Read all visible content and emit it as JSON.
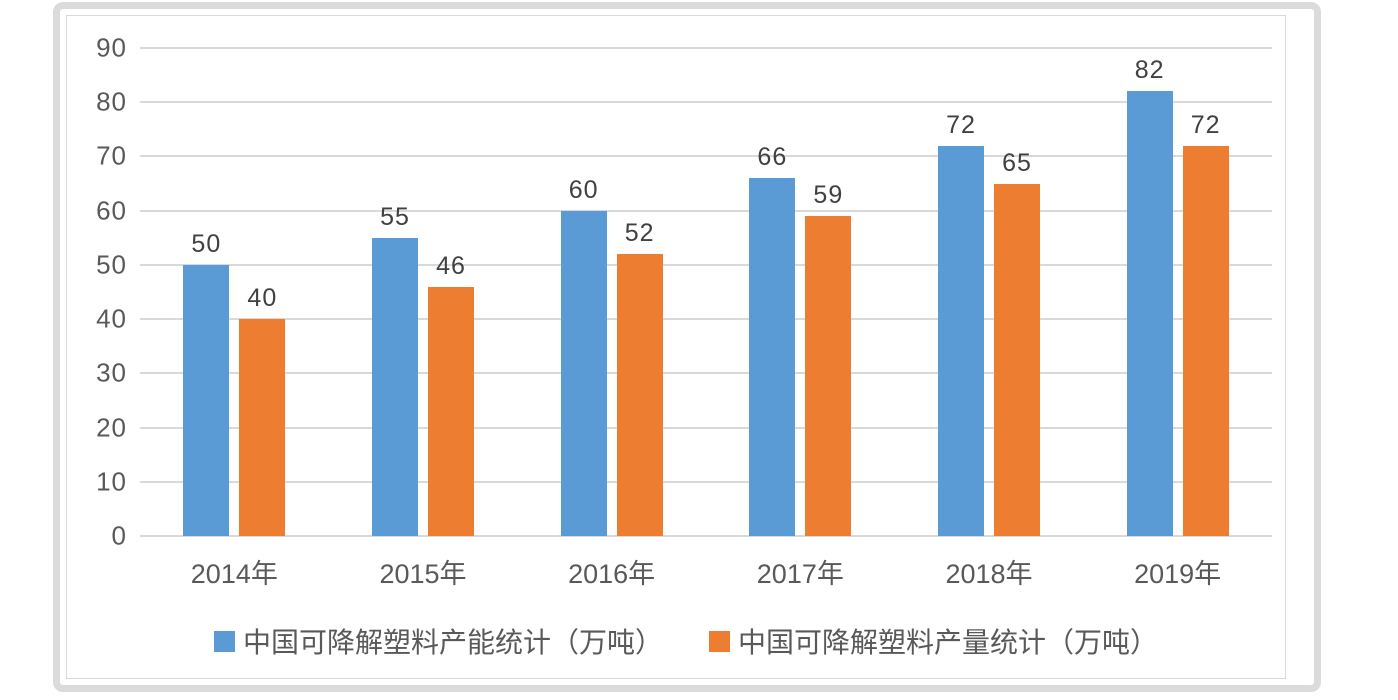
{
  "chart_data": {
    "type": "bar",
    "categories": [
      "2014年",
      "2015年",
      "2016年",
      "2017年",
      "2018年",
      "2019年"
    ],
    "series": [
      {
        "name": "中国可降解塑料产能统计（万吨）",
        "color": "#5B9BD5",
        "values": [
          50,
          55,
          60,
          66,
          72,
          82
        ]
      },
      {
        "name": "中国可降解塑料产量统计（万吨）",
        "color": "#ED7D31",
        "values": [
          40,
          46,
          52,
          59,
          65,
          72
        ]
      }
    ],
    "title": "",
    "xlabel": "",
    "ylabel": "",
    "ylim": [
      0,
      90
    ],
    "yticks": [
      0,
      10,
      20,
      30,
      40,
      50,
      60,
      70,
      80,
      90
    ],
    "grid": true,
    "data_labels": true,
    "legend_position": "bottom"
  },
  "colors": {
    "series_capacity": "#5B9BD5",
    "series_output": "#ED7D31",
    "gridline": "#D9D9D9",
    "axis_text": "#595959",
    "data_label_text": "#404040",
    "frame_border": "#DBDBDB",
    "chart_border": "#D9D9D9",
    "background": "#FFFFFF"
  }
}
